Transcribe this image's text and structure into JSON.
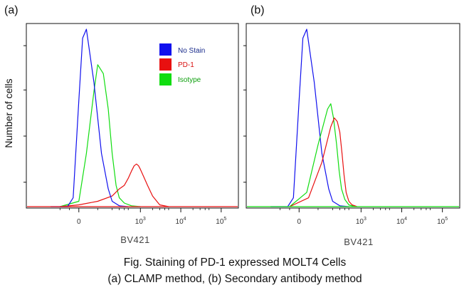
{
  "figure": {
    "caption_line1": "Fig. Staining of PD-1 expressed MOLT4 Cells",
    "caption_line2": "(a) CLAMP method, (b) Secondary antibody method",
    "ylabel": "Number of cells"
  },
  "colors": {
    "no_stain": "#1010ee",
    "pd1": "#e81010",
    "isotype": "#10dd10",
    "axis": "#111111"
  },
  "chart_data": [
    {
      "type": "line",
      "panel_label": "(a)",
      "xlabel": "BV421",
      "x_scale": "biexponential (log above ~10^2)",
      "xticks": [
        {
          "value": 0,
          "label": "0"
        },
        {
          "value": 1000,
          "label": "10",
          "exp": "3"
        },
        {
          "value": 10000,
          "label": "10",
          "exp": "4"
        },
        {
          "value": 100000,
          "label": "10",
          "exp": "5"
        }
      ],
      "legend": {
        "position": "top-center",
        "entries": [
          "No Stain",
          "PD-1",
          "Isotype"
        ]
      },
      "series": [
        {
          "name": "No Stain",
          "x": [
            -150,
            -60,
            -30,
            0,
            20,
            40,
            80,
            120,
            160,
            200,
            300,
            500
          ],
          "y": [
            0,
            0,
            0.05,
            0.6,
            0.95,
            1.0,
            0.7,
            0.3,
            0.1,
            0.03,
            0.005,
            0
          ]
        },
        {
          "name": "PD-1",
          "x": [
            -100,
            0,
            100,
            200,
            300,
            400,
            500,
            600,
            700,
            800,
            900,
            1000,
            1200,
            1500,
            2000,
            3000,
            5000
          ],
          "y": [
            0,
            0.01,
            0.03,
            0.06,
            0.1,
            0.12,
            0.16,
            0.2,
            0.23,
            0.24,
            0.23,
            0.21,
            0.17,
            0.12,
            0.06,
            0.01,
            0
          ]
        },
        {
          "name": "Isotype",
          "x": [
            -100,
            0,
            40,
            80,
            100,
            130,
            160,
            200,
            250,
            300,
            400,
            600,
            1000
          ],
          "y": [
            0,
            0.03,
            0.3,
            0.65,
            0.8,
            0.75,
            0.55,
            0.3,
            0.12,
            0.05,
            0.02,
            0.005,
            0
          ]
        }
      ]
    },
    {
      "type": "line",
      "panel_label": "(b)",
      "xlabel": "BV421",
      "x_scale": "biexponential (log above ~10^2)",
      "xticks": [
        {
          "value": 0,
          "label": "0"
        },
        {
          "value": 1000,
          "label": "10",
          "exp": "3"
        },
        {
          "value": 10000,
          "label": "10",
          "exp": "4"
        },
        {
          "value": 100000,
          "label": "10",
          "exp": "5"
        }
      ],
      "series": [
        {
          "name": "No Stain",
          "x": [
            -150,
            -60,
            -30,
            0,
            20,
            40,
            80,
            120,
            160,
            200,
            300,
            500
          ],
          "y": [
            0,
            0,
            0.05,
            0.6,
            0.95,
            1.0,
            0.7,
            0.3,
            0.1,
            0.03,
            0.005,
            0
          ]
        },
        {
          "name": "PD-1",
          "x": [
            -50,
            50,
            120,
            180,
            220,
            260,
            300,
            340,
            380,
            430,
            500,
            600,
            800
          ],
          "y": [
            0,
            0.05,
            0.25,
            0.45,
            0.5,
            0.48,
            0.42,
            0.3,
            0.18,
            0.08,
            0.03,
            0.01,
            0
          ]
        },
        {
          "name": "Isotype",
          "x": [
            -50,
            40,
            100,
            150,
            180,
            210,
            250,
            290,
            330,
            400,
            500,
            700
          ],
          "y": [
            0,
            0.08,
            0.35,
            0.55,
            0.58,
            0.5,
            0.35,
            0.2,
            0.1,
            0.04,
            0.01,
            0
          ]
        }
      ]
    }
  ]
}
